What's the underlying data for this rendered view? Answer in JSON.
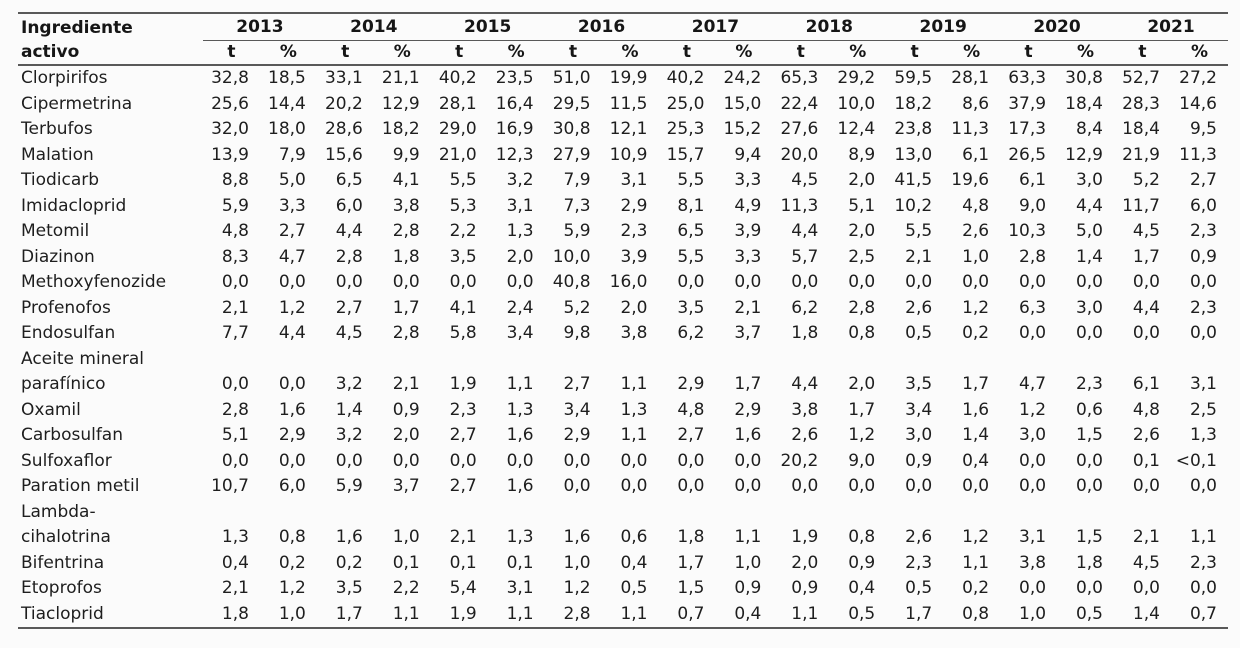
{
  "colors": {
    "background": "#fbfbfb",
    "text": "#1e1e1e",
    "rule": "#595959"
  },
  "table": {
    "row_header": {
      "line1": "Ingrediente",
      "line2": "activo"
    },
    "years": [
      "2013",
      "2014",
      "2015",
      "2016",
      "2017",
      "2018",
      "2019",
      "2020",
      "2021"
    ],
    "subcolumns": [
      "t",
      "%"
    ],
    "rows": [
      {
        "label_lines": [
          "Clorpirifos"
        ],
        "values": [
          "32,8",
          "18,5",
          "33,1",
          "21,1",
          "40,2",
          "23,5",
          "51,0",
          "19,9",
          "40,2",
          "24,2",
          "65,3",
          "29,2",
          "59,5",
          "28,1",
          "63,3",
          "30,8",
          "52,7",
          "27,2"
        ]
      },
      {
        "label_lines": [
          "Cipermetrina"
        ],
        "values": [
          "25,6",
          "14,4",
          "20,2",
          "12,9",
          "28,1",
          "16,4",
          "29,5",
          "11,5",
          "25,0",
          "15,0",
          "22,4",
          "10,0",
          "18,2",
          "8,6",
          "37,9",
          "18,4",
          "28,3",
          "14,6"
        ]
      },
      {
        "label_lines": [
          "Terbufos"
        ],
        "values": [
          "32,0",
          "18,0",
          "28,6",
          "18,2",
          "29,0",
          "16,9",
          "30,8",
          "12,1",
          "25,3",
          "15,2",
          "27,6",
          "12,4",
          "23,8",
          "11,3",
          "17,3",
          "8,4",
          "18,4",
          "9,5"
        ]
      },
      {
        "label_lines": [
          "Malation"
        ],
        "values": [
          "13,9",
          "7,9",
          "15,6",
          "9,9",
          "21,0",
          "12,3",
          "27,9",
          "10,9",
          "15,7",
          "9,4",
          "20,0",
          "8,9",
          "13,0",
          "6,1",
          "26,5",
          "12,9",
          "21,9",
          "11,3"
        ]
      },
      {
        "label_lines": [
          "Tiodicarb"
        ],
        "values": [
          "8,8",
          "5,0",
          "6,5",
          "4,1",
          "5,5",
          "3,2",
          "7,9",
          "3,1",
          "5,5",
          "3,3",
          "4,5",
          "2,0",
          "41,5",
          "19,6",
          "6,1",
          "3,0",
          "5,2",
          "2,7"
        ]
      },
      {
        "label_lines": [
          "Imidacloprid"
        ],
        "values": [
          "5,9",
          "3,3",
          "6,0",
          "3,8",
          "5,3",
          "3,1",
          "7,3",
          "2,9",
          "8,1",
          "4,9",
          "11,3",
          "5,1",
          "10,2",
          "4,8",
          "9,0",
          "4,4",
          "11,7",
          "6,0"
        ]
      },
      {
        "label_lines": [
          "Metomil"
        ],
        "values": [
          "4,8",
          "2,7",
          "4,4",
          "2,8",
          "2,2",
          "1,3",
          "5,9",
          "2,3",
          "6,5",
          "3,9",
          "4,4",
          "2,0",
          "5,5",
          "2,6",
          "10,3",
          "5,0",
          "4,5",
          "2,3"
        ]
      },
      {
        "label_lines": [
          "Diazinon"
        ],
        "values": [
          "8,3",
          "4,7",
          "2,8",
          "1,8",
          "3,5",
          "2,0",
          "10,0",
          "3,9",
          "5,5",
          "3,3",
          "5,7",
          "2,5",
          "2,1",
          "1,0",
          "2,8",
          "1,4",
          "1,7",
          "0,9"
        ]
      },
      {
        "label_lines": [
          "Methoxyfenozide"
        ],
        "values": [
          "0,0",
          "0,0",
          "0,0",
          "0,0",
          "0,0",
          "0,0",
          "40,8",
          "16,0",
          "0,0",
          "0,0",
          "0,0",
          "0,0",
          "0,0",
          "0,0",
          "0,0",
          "0,0",
          "0,0",
          "0,0"
        ]
      },
      {
        "label_lines": [
          "Profenofos"
        ],
        "values": [
          "2,1",
          "1,2",
          "2,7",
          "1,7",
          "4,1",
          "2,4",
          "5,2",
          "2,0",
          "3,5",
          "2,1",
          "6,2",
          "2,8",
          "2,6",
          "1,2",
          "6,3",
          "3,0",
          "4,4",
          "2,3"
        ]
      },
      {
        "label_lines": [
          "Endosulfan"
        ],
        "values": [
          "7,7",
          "4,4",
          "4,5",
          "2,8",
          "5,8",
          "3,4",
          "9,8",
          "3,8",
          "6,2",
          "3,7",
          "1,8",
          "0,8",
          "0,5",
          "0,2",
          "0,0",
          "0,0",
          "0,0",
          "0,0"
        ]
      },
      {
        "label_lines": [
          "Aceite mineral",
          "parafínico"
        ],
        "values": [
          "0,0",
          "0,0",
          "3,2",
          "2,1",
          "1,9",
          "1,1",
          "2,7",
          "1,1",
          "2,9",
          "1,7",
          "4,4",
          "2,0",
          "3,5",
          "1,7",
          "4,7",
          "2,3",
          "6,1",
          "3,1"
        ]
      },
      {
        "label_lines": [
          "Oxamil"
        ],
        "values": [
          "2,8",
          "1,6",
          "1,4",
          "0,9",
          "2,3",
          "1,3",
          "3,4",
          "1,3",
          "4,8",
          "2,9",
          "3,8",
          "1,7",
          "3,4",
          "1,6",
          "1,2",
          "0,6",
          "4,8",
          "2,5"
        ]
      },
      {
        "label_lines": [
          "Carbosulfan"
        ],
        "values": [
          "5,1",
          "2,9",
          "3,2",
          "2,0",
          "2,7",
          "1,6",
          "2,9",
          "1,1",
          "2,7",
          "1,6",
          "2,6",
          "1,2",
          "3,0",
          "1,4",
          "3,0",
          "1,5",
          "2,6",
          "1,3"
        ]
      },
      {
        "label_lines": [
          "Sulfoxaflor"
        ],
        "values": [
          "0,0",
          "0,0",
          "0,0",
          "0,0",
          "0,0",
          "0,0",
          "0,0",
          "0,0",
          "0,0",
          "0,0",
          "20,2",
          "9,0",
          "0,9",
          "0,4",
          "0,0",
          "0,0",
          "0,1",
          "<0,1"
        ]
      },
      {
        "label_lines": [
          "Paration metil"
        ],
        "values": [
          "10,7",
          "6,0",
          "5,9",
          "3,7",
          "2,7",
          "1,6",
          "0,0",
          "0,0",
          "0,0",
          "0,0",
          "0,0",
          "0,0",
          "0,0",
          "0,0",
          "0,0",
          "0,0",
          "0,0",
          "0,0"
        ]
      },
      {
        "label_lines": [
          "Lambda-",
          "cihalotrina"
        ],
        "values": [
          "1,3",
          "0,8",
          "1,6",
          "1,0",
          "2,1",
          "1,3",
          "1,6",
          "0,6",
          "1,8",
          "1,1",
          "1,9",
          "0,8",
          "2,6",
          "1,2",
          "3,1",
          "1,5",
          "2,1",
          "1,1"
        ]
      },
      {
        "label_lines": [
          "Bifentrina"
        ],
        "values": [
          "0,4",
          "0,2",
          "0,2",
          "0,1",
          "0,1",
          "0,1",
          "1,0",
          "0,4",
          "1,7",
          "1,0",
          "2,0",
          "0,9",
          "2,3",
          "1,1",
          "3,8",
          "1,8",
          "4,5",
          "2,3"
        ]
      },
      {
        "label_lines": [
          "Etoprofos"
        ],
        "values": [
          "2,1",
          "1,2",
          "3,5",
          "2,2",
          "5,4",
          "3,1",
          "1,2",
          "0,5",
          "1,5",
          "0,9",
          "0,9",
          "0,4",
          "0,5",
          "0,2",
          "0,0",
          "0,0",
          "0,0",
          "0,0"
        ]
      },
      {
        "label_lines": [
          "Tiacloprid"
        ],
        "values": [
          "1,8",
          "1,0",
          "1,7",
          "1,1",
          "1,9",
          "1,1",
          "2,8",
          "1,1",
          "0,7",
          "0,4",
          "1,1",
          "0,5",
          "1,7",
          "0,8",
          "1,0",
          "0,5",
          "1,4",
          "0,7"
        ]
      }
    ]
  }
}
